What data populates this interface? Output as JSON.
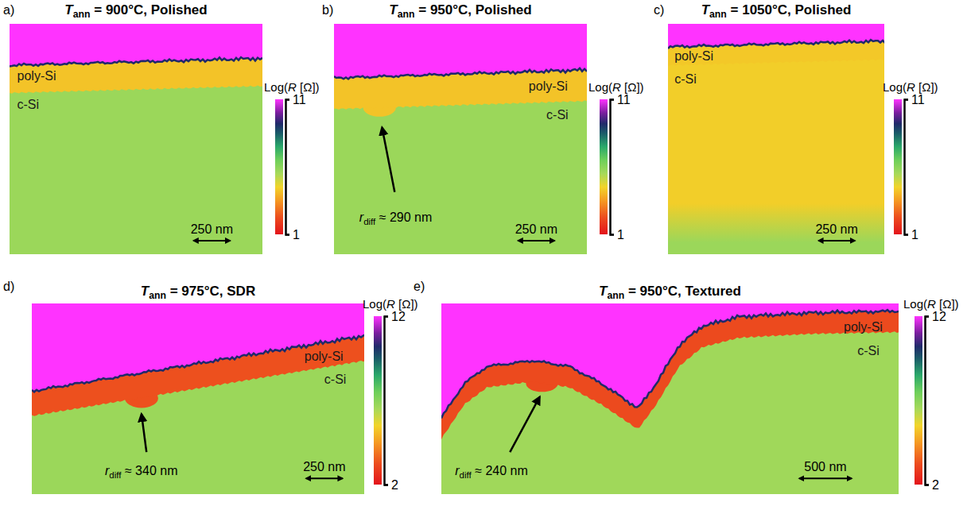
{
  "chart_data": [
    {
      "type": "heatmap",
      "letter": "a)",
      "title": {
        "symbol": "T",
        "subscript": "ann",
        "text": " = 900°C, Polished"
      },
      "colorbar_label": {
        "pre": "Log(",
        "symbol": "R",
        "post": " [Ω])"
      },
      "clim": [
        1,
        11
      ],
      "cticks": [
        1,
        11
      ],
      "cells": {
        "air": 11,
        "poly_si": 4.2,
        "c_si": 5.7
      },
      "labels": [
        "poly-Si",
        "c-Si"
      ],
      "scale_bar": "250 nm"
    },
    {
      "type": "heatmap",
      "letter": "b)",
      "title": {
        "symbol": "T",
        "subscript": "ann",
        "text": " = 950°C, Polished"
      },
      "colorbar_label": {
        "pre": "Log(",
        "symbol": "R",
        "post": " [Ω])"
      },
      "clim": [
        1,
        11
      ],
      "cticks": [
        1,
        11
      ],
      "cells": {
        "air": 11,
        "poly_si": 4.2,
        "c_si": 5.7
      },
      "labels": [
        "poly-Si",
        "c-Si"
      ],
      "annotation": {
        "symbol": "r",
        "subscript": "diff",
        "text": " ≈ 290 nm"
      },
      "scale_bar": "250 nm"
    },
    {
      "type": "heatmap",
      "letter": "c)",
      "title": {
        "symbol": "T",
        "subscript": "ann",
        "text": " = 1050°C, Polished"
      },
      "colorbar_label": {
        "pre": "Log(",
        "symbol": "R",
        "post": " [Ω])"
      },
      "clim": [
        1,
        11
      ],
      "cticks": [
        1,
        11
      ],
      "cells": {
        "air": 11,
        "poly_si": 4.3,
        "c_si": 4.4,
        "c_si_bulk": 5.7
      },
      "labels": [
        "poly-Si",
        "c-Si"
      ],
      "scale_bar": "250 nm"
    },
    {
      "type": "heatmap",
      "letter": "d)",
      "title": {
        "symbol": "T",
        "subscript": "ann",
        "text": " = 975°C, SDR"
      },
      "colorbar_label": {
        "pre": "Log(",
        "symbol": "R",
        "post": " [Ω])"
      },
      "clim": [
        2,
        12
      ],
      "cticks": [
        2,
        12
      ],
      "cells": {
        "air": 12,
        "poly_si": 3.3,
        "c_si": 6.7
      },
      "labels": [
        "poly-Si",
        "c-Si"
      ],
      "annotation": {
        "symbol": "r",
        "subscript": "diff",
        "text": " ≈ 340 nm"
      },
      "scale_bar": "250 nm"
    },
    {
      "type": "heatmap",
      "letter": "e)",
      "title": {
        "symbol": "T",
        "subscript": "ann",
        "text": " = 950°C, Textured"
      },
      "colorbar_label": {
        "pre": "Log(",
        "symbol": "R",
        "post": " [Ω])"
      },
      "clim": [
        2,
        12
      ],
      "cticks": [
        2,
        12
      ],
      "cells": {
        "air": 12,
        "poly_si": 3.2,
        "c_si": 6.6
      },
      "labels": [
        "poly-Si",
        "c-Si"
      ],
      "annotation": {
        "symbol": "r",
        "subscript": "diff",
        "text": " ≈ 240 nm"
      },
      "scale_bar": "500 nm"
    }
  ]
}
